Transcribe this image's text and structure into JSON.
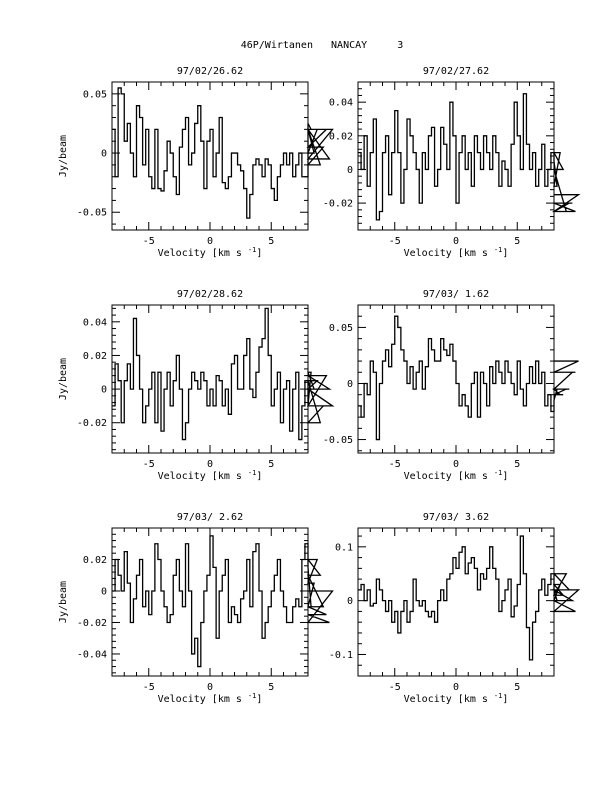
{
  "page_title": "46P/Wirtanen   NANCAY     3",
  "chart_data": [
    {
      "type": "line",
      "title": "97/02/26.62",
      "xlabel": "Velocity [km s",
      "xlabel_sup": "-1",
      "xlabel_end": "]",
      "ylabel": "Jy/beam",
      "xlim": [
        -8,
        8
      ],
      "ylim": [
        -0.065,
        0.06
      ],
      "xticks": [
        -5,
        0,
        5
      ],
      "yticks": [
        -0.05,
        0,
        0.05
      ],
      "yticklabels": [
        "-0.05",
        "0",
        "0.05"
      ],
      "x_start": -8,
      "x_step": 0.25,
      "y": [
        0.02,
        -0.02,
        0.055,
        0.05,
        0.01,
        0.025,
        0,
        -0.02,
        0.04,
        0.03,
        -0.01,
        0.02,
        -0.02,
        -0.03,
        0.02,
        -0.03,
        -0.032,
        -0.015,
        0.01,
        0.0,
        -0.02,
        -0.035,
        0.005,
        0.02,
        0.03,
        -0.01,
        0.0,
        0.025,
        0.04,
        0.01,
        -0.03,
        0.01,
        0.02,
        -0.02,
        0.0,
        0.03,
        -0.025,
        -0.03,
        -0.02,
        0.0,
        0.0,
        -0.01,
        -0.015,
        -0.03,
        -0.055,
        -0.035,
        -0.01,
        -0.005,
        -0.01,
        -0.02,
        -0.005,
        -0.01,
        -0.03,
        -0.04,
        -0.02,
        -0.01,
        0.0,
        -0.01,
        0.0,
        -0.02,
        -0.01,
        0.0,
        -0.02,
        -0.02,
        0.025,
        0.02,
        0.0,
        0.02,
        -0.01,
        0.005,
        0.02,
        -0.005,
        0.02
      ]
    },
    {
      "type": "line",
      "title": "97/02/27.62",
      "xlabel": "Velocity [km s",
      "xlabel_sup": "-1",
      "xlabel_end": "]",
      "ylabel": "",
      "xlim": [
        -8,
        8
      ],
      "ylim": [
        -0.036,
        0.052
      ],
      "xticks": [
        -5,
        0,
        5
      ],
      "yticks": [
        -0.02,
        0,
        0.02,
        0.04
      ],
      "yticklabels": [
        "-0.02",
        "0",
        "0.02",
        "0.04"
      ],
      "x_start": -8,
      "x_step": 0.25,
      "y": [
        0.01,
        0.0,
        0.02,
        -0.01,
        0.01,
        0.03,
        -0.03,
        -0.025,
        0.01,
        0.02,
        -0.015,
        0.01,
        0.035,
        0.01,
        -0.02,
        0.0,
        0.03,
        0.02,
        0.01,
        0.0,
        -0.02,
        0.01,
        0.0,
        0.02,
        0.025,
        -0.01,
        0.0,
        0.025,
        0.015,
        0.0,
        0.04,
        0.02,
        -0.02,
        0.01,
        0.02,
        0.0,
        0.01,
        -0.01,
        0.02,
        0.01,
        0.0,
        0.02,
        0.01,
        0.0,
        0.02,
        0.01,
        -0.01,
        0.005,
        0.0,
        -0.01,
        0.015,
        0.04,
        0.02,
        0.0,
        0.045,
        0.015,
        0.0,
        0.01,
        -0.01,
        0.0,
        0.015,
        -0.01,
        0.0,
        0.01,
        0.005,
        -0.01,
        0.01,
        0.0,
        -0.025,
        -0.02,
        -0.02,
        -0.025,
        -0.015
      ]
    },
    {
      "type": "line",
      "title": "97/02/28.62",
      "xlabel": "Velocity [km s",
      "xlabel_sup": "-1",
      "xlabel_end": "]",
      "ylabel": "Jy/beam",
      "xlim": [
        -8,
        8
      ],
      "ylim": [
        -0.038,
        0.05
      ],
      "xticks": [
        -5,
        0,
        5
      ],
      "yticks": [
        -0.02,
        0,
        0.02,
        0.04
      ],
      "yticklabels": [
        "-0.02",
        "0",
        "0.02",
        "0.04"
      ],
      "x_start": -8,
      "x_step": 0.25,
      "y": [
        -0.01,
        0.015,
        0.005,
        -0.02,
        0.005,
        0.015,
        0.0,
        0.042,
        0.02,
        0.0,
        -0.02,
        -0.01,
        0.0,
        0.01,
        -0.02,
        0.01,
        -0.025,
        0.0,
        0.01,
        -0.01,
        0.005,
        0.02,
        0.0,
        -0.03,
        -0.02,
        0.0,
        0.01,
        0.005,
        0.0,
        0.01,
        0.005,
        -0.01,
        0.0,
        -0.01,
        0.008,
        0.005,
        -0.01,
        0.0,
        -0.015,
        0.015,
        0.02,
        0.0,
        0.0,
        0.02,
        0.03,
        0.0,
        -0.005,
        0.01,
        0.025,
        0.03,
        0.048,
        0.02,
        -0.01,
        0.0,
        0.01,
        -0.02,
        0.0,
        0.005,
        -0.025,
        0.0,
        0.01,
        -0.03,
        -0.01,
        0.005,
        -0.01,
        0.01,
        0.0,
        0.005,
        -0.02,
        -0.01,
        0.008,
        0.0,
        -0.01
      ]
    },
    {
      "type": "line",
      "title": "97/03/ 1.62",
      "xlabel": "Velocity [km s",
      "xlabel_sup": "-1",
      "xlabel_end": "]",
      "ylabel": "",
      "xlim": [
        -8,
        8
      ],
      "ylim": [
        -0.062,
        0.07
      ],
      "xticks": [
        -5,
        0,
        5
      ],
      "yticks": [
        -0.05,
        0,
        0.05
      ],
      "yticklabels": [
        "-0.05",
        "0",
        "0.05"
      ],
      "x_start": -8,
      "x_step": 0.25,
      "y": [
        -0.02,
        -0.03,
        0.0,
        -0.01,
        0.02,
        0.01,
        -0.05,
        0.0,
        0.02,
        0.03,
        0.015,
        0.035,
        0.06,
        0.05,
        0.03,
        0.02,
        0.0,
        0.015,
        -0.005,
        0.01,
        0.02,
        -0.005,
        0.015,
        0.04,
        0.03,
        0.02,
        0.02,
        0.04,
        0.03,
        0.025,
        0.035,
        0.02,
        0.0,
        -0.02,
        -0.01,
        -0.02,
        -0.03,
        0.0,
        0.01,
        -0.03,
        0.01,
        0.0,
        -0.02,
        0.015,
        0.0,
        0.02,
        0.01,
        0.0,
        0.02,
        0.01,
        0.0,
        -0.01,
        0.02,
        -0.005,
        -0.02,
        0.0,
        0.015,
        0.0,
        0.02,
        0.0,
        0.01,
        -0.02,
        -0.01,
        -0.025,
        -0.015,
        -0.005,
        -0.01,
        -0.01,
        -0.005,
        -0.005,
        0.01,
        0.01,
        0.02
      ]
    },
    {
      "type": "line",
      "title": "97/03/ 2.62",
      "xlabel": "Velocity [km s",
      "xlabel_sup": "-1",
      "xlabel_end": "]",
      "ylabel": "Jy/beam",
      "xlim": [
        -8,
        8
      ],
      "ylim": [
        -0.054,
        0.04
      ],
      "xticks": [
        -5,
        0,
        5
      ],
      "yticks": [
        -0.04,
        -0.02,
        0,
        0.02
      ],
      "yticklabels": [
        "-0.04",
        "-0.02",
        "0",
        "0.02"
      ],
      "x_start": -8,
      "x_step": 0.25,
      "y": [
        0.0,
        0.02,
        0.01,
        0.0,
        0.025,
        0.005,
        -0.02,
        -0.005,
        0.01,
        0.02,
        -0.01,
        0.0,
        -0.015,
        0.0,
        0.03,
        0.02,
        0.0,
        -0.01,
        -0.02,
        -0.015,
        0.01,
        0.02,
        0.0,
        -0.01,
        0.03,
        0.0,
        -0.04,
        -0.03,
        -0.048,
        -0.02,
        0.0,
        0.01,
        0.035,
        0.015,
        -0.03,
        0.0,
        0.01,
        0.02,
        -0.02,
        -0.01,
        -0.015,
        -0.02,
        -0.005,
        0.0,
        0.02,
        -0.01,
        0.025,
        0.03,
        0.0,
        -0.03,
        -0.02,
        -0.01,
        0.0,
        0.01,
        0.02,
        0.0,
        -0.01,
        -0.02,
        -0.02,
        -0.01,
        -0.005,
        -0.01,
        0.02,
        0.03,
        0.015,
        -0.01,
        0.005,
        0.02,
        0.01,
        -0.01,
        -0.015,
        -0.02,
        0.0
      ]
    },
    {
      "type": "line",
      "title": "97/03/ 3.62",
      "xlabel": "Velocity [km s",
      "xlabel_sup": "-1",
      "xlabel_end": "]",
      "ylabel": "",
      "xlim": [
        -8,
        8
      ],
      "ylim": [
        -0.14,
        0.135
      ],
      "xticks": [
        -5,
        0,
        5
      ],
      "yticks": [
        -0.1,
        0,
        0.1
      ],
      "yticklabels": [
        "-0.1",
        "0",
        "0.1"
      ],
      "x_start": -8,
      "x_step": 0.25,
      "y": [
        0.02,
        0.03,
        0.0,
        0.02,
        -0.01,
        -0.005,
        0.04,
        0.02,
        0.0,
        -0.02,
        0.0,
        -0.04,
        -0.02,
        -0.06,
        -0.02,
        0.0,
        -0.04,
        -0.02,
        0.04,
        0.0,
        -0.01,
        0.0,
        -0.02,
        -0.03,
        -0.02,
        -0.04,
        0.0,
        0.02,
        0.0,
        0.04,
        0.05,
        0.08,
        0.06,
        0.09,
        0.1,
        0.05,
        0.07,
        0.08,
        0.06,
        0.02,
        0.05,
        0.04,
        0.06,
        0.1,
        0.06,
        0.04,
        -0.02,
        0.0,
        0.02,
        0.04,
        -0.03,
        -0.01,
        0.03,
        0.12,
        0.05,
        -0.05,
        -0.11,
        -0.04,
        -0.02,
        0.02,
        0.04,
        0.01,
        0.03,
        0.05,
        0.02,
        0.0,
        0.03,
        0.01,
        0.05,
        0.02,
        0.0,
        -0.02,
        0.02
      ]
    }
  ]
}
